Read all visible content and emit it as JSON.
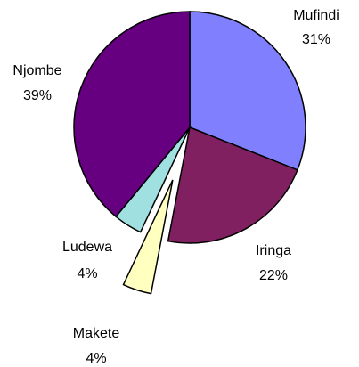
{
  "chart_data": {
    "type": "pie",
    "categories": [
      "Mufindi",
      "Iringa",
      "Makete",
      "Ludewa",
      "Njombe"
    ],
    "values": [
      31,
      22,
      4,
      4,
      39
    ],
    "value_labels": [
      "31%",
      "22%",
      "4%",
      "4%",
      "39%"
    ],
    "colors": [
      "#8080ff",
      "#802060",
      "#ffffc0",
      "#a0e0e0",
      "#660080"
    ],
    "exploded": [
      "Makete"
    ]
  }
}
